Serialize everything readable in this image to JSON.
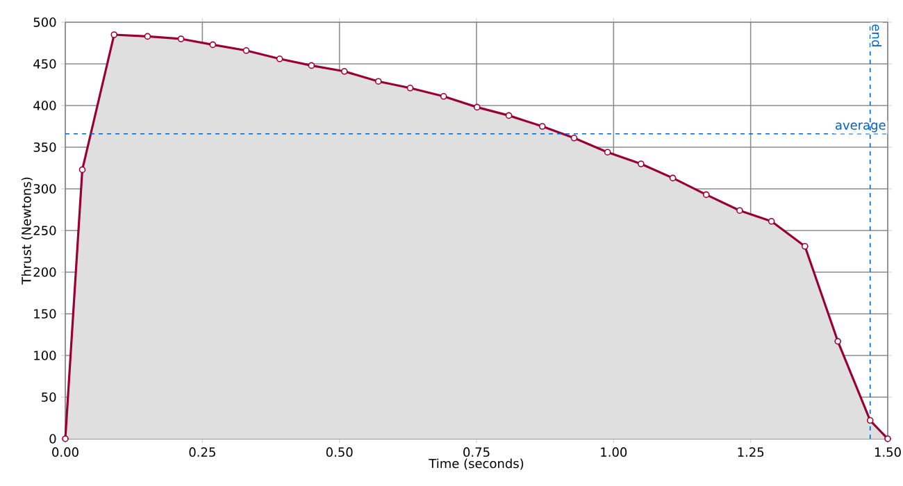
{
  "chart_data": {
    "type": "area",
    "xlabel": "Time (seconds)",
    "ylabel": "Thrust (Newtons)",
    "x": [
      0,
      0.031,
      0.089,
      0.15,
      0.211,
      0.269,
      0.33,
      0.391,
      0.449,
      0.509,
      0.571,
      0.629,
      0.69,
      0.751,
      0.809,
      0.87,
      0.928,
      0.989,
      1.05,
      1.108,
      1.169,
      1.23,
      1.288,
      1.349,
      1.409,
      1.468,
      1.5
    ],
    "series": [
      {
        "color": "#990033",
        "values": [
          0,
          323,
          485,
          483,
          480,
          473,
          466,
          456,
          448,
          441,
          429,
          421,
          411,
          398,
          388,
          375,
          361,
          344,
          330,
          313,
          293,
          274,
          261,
          231,
          117,
          22,
          0
        ]
      }
    ],
    "xlim": [
      0,
      1.5
    ],
    "ylim": [
      0,
      500
    ],
    "xticks": [
      {
        "value": 0,
        "label": "0.00"
      },
      {
        "value": 0.25,
        "label": "0.25"
      },
      {
        "value": 0.5,
        "label": "0.50"
      },
      {
        "value": 0.75,
        "label": "0.75"
      },
      {
        "value": 1,
        "label": "1.00"
      },
      {
        "value": 1.25,
        "label": "1.25"
      },
      {
        "value": 1.5,
        "label": "1.50"
      }
    ],
    "yticks": [
      0,
      50,
      100,
      150,
      200,
      250,
      300,
      350,
      400,
      450,
      500
    ],
    "grid": true,
    "marker": "circle",
    "line_style": "solid",
    "ref_lines": [
      {
        "axis": "y",
        "value": 366,
        "label": "average",
        "color": "#0066cc",
        "line_style": "dashed"
      },
      {
        "axis": "x",
        "value": 1.468,
        "label": "end",
        "color": "#0066cc",
        "line_style": "dashed"
      }
    ]
  }
}
